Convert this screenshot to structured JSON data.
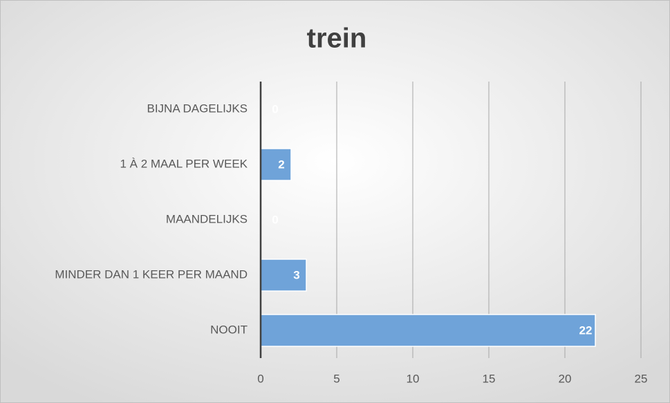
{
  "chart_data": {
    "type": "barh",
    "title": "trein",
    "categories": [
      "BIJNA DAGELIJKS",
      "1 À 2 MAAL PER WEEK",
      "MAANDELIJKS",
      "MINDER DAN 1 KEER PER MAAND",
      "NOOIT"
    ],
    "values": [
      0,
      2,
      0,
      3,
      22
    ],
    "color": "#6fa3d9",
    "xlim": [
      0,
      25
    ],
    "xticks": [
      0,
      5,
      10,
      15,
      20,
      25
    ],
    "grid": true
  }
}
